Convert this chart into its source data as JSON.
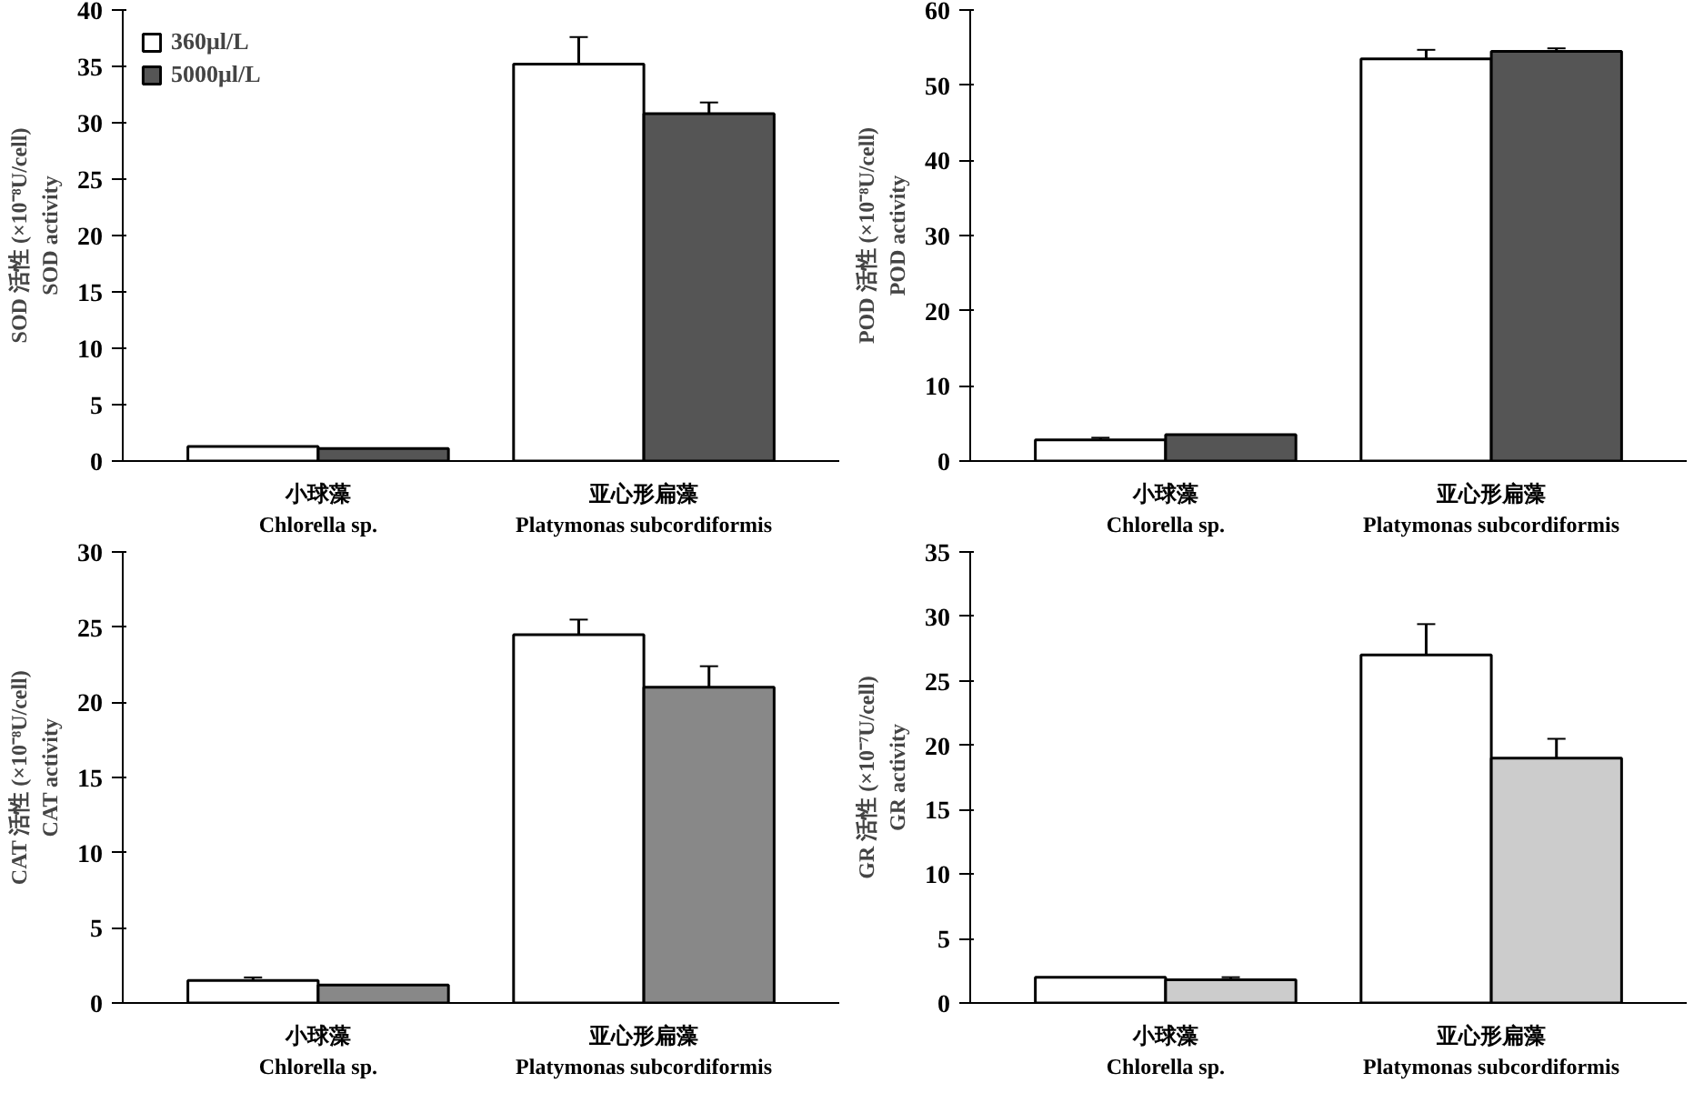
{
  "chart_data": [
    {
      "type": "bar",
      "ylabel": "SOD 活性 (×10⁻⁸U/cell)\nSOD activity",
      "categories": [
        "小球藻\nChlorella sp.",
        "亚心形扁藻\nPlatymonas subcordiformis"
      ],
      "ylim": [
        0,
        40
      ],
      "yticks": [
        0,
        5,
        10,
        15,
        20,
        25,
        30,
        35,
        40
      ],
      "grid": false,
      "legend": "top left",
      "series": [
        {
          "name": "360μl/L",
          "color": "#ffffff",
          "values": [
            1.3,
            35.2
          ],
          "errors": [
            null,
            2.4
          ]
        },
        {
          "name": "5000μl/L",
          "color": "#555555",
          "values": [
            1.1,
            30.8
          ],
          "errors": [
            null,
            1.0
          ]
        }
      ]
    },
    {
      "type": "bar",
      "ylabel": "POD 活性 (×10⁻⁸U/cell)\nPOD activity",
      "categories": [
        "小球藻\nChlorella sp.",
        "亚心形扁藻\nPlatymonas subcordiformis"
      ],
      "ylim": [
        0,
        60
      ],
      "yticks": [
        0,
        10,
        20,
        30,
        40,
        50,
        60
      ],
      "grid": false,
      "series": [
        {
          "color": "#ffffff",
          "values": [
            2.8,
            53.5
          ],
          "errors": [
            0.3,
            1.2
          ]
        },
        {
          "color": "#555555",
          "values": [
            3.5,
            54.5
          ],
          "errors": [
            null,
            0.4
          ]
        }
      ]
    },
    {
      "type": "bar",
      "ylabel": "CAT 活性 (×10⁻⁸U/cell)\nCAT activity",
      "categories": [
        "小球藻\nChlorella sp.",
        "亚心形扁藻\nPlatymonas subcordiformis"
      ],
      "ylim": [
        0,
        30
      ],
      "yticks": [
        0,
        5,
        10,
        15,
        20,
        25,
        30
      ],
      "grid": false,
      "series": [
        {
          "color": "#ffffff",
          "values": [
            1.5,
            24.5
          ],
          "errors": [
            0.2,
            1.0
          ]
        },
        {
          "color": "#888888",
          "values": [
            1.2,
            21.0
          ],
          "errors": [
            null,
            1.4
          ]
        }
      ]
    },
    {
      "type": "bar",
      "ylabel": "GR 活性 (×10⁻⁷U/cell)\nGR activity",
      "categories": [
        "小球藻\nChlorella sp.",
        "亚心形扁藻\nPlatymonas subcordiformis"
      ],
      "ylim": [
        0,
        35
      ],
      "yticks": [
        0,
        5,
        10,
        15,
        20,
        25,
        30,
        35
      ],
      "grid": false,
      "series": [
        {
          "color": "#ffffff",
          "values": [
            2.0,
            27.0
          ],
          "errors": [
            null,
            2.4
          ]
        },
        {
          "color": "#cccccc",
          "values": [
            1.8,
            19.0
          ],
          "errors": [
            0.2,
            1.5
          ]
        }
      ]
    }
  ]
}
